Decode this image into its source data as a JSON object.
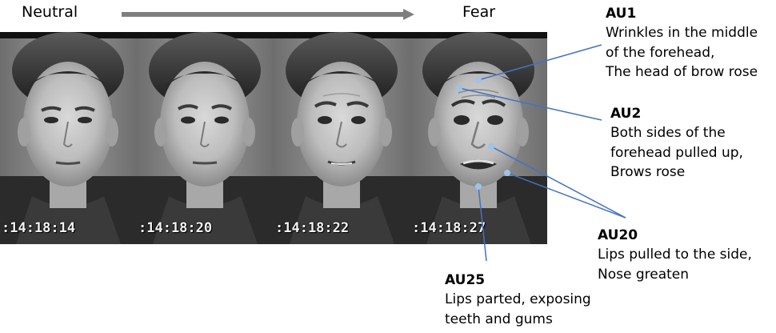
{
  "sequence": {
    "start_label": "Neutral",
    "end_label": "Fear"
  },
  "frames": [
    {
      "timestamp": ":14:18:14"
    },
    {
      "timestamp": ":14:18:20"
    },
    {
      "timestamp": ":14:18:22"
    },
    {
      "timestamp": ":14:18:27"
    }
  ],
  "action_units": {
    "au1": {
      "title": "AU1",
      "lines": [
        "Wrinkles in the middle",
        "of the forehead,",
        "The head of brow rose"
      ]
    },
    "au2": {
      "title": "AU2",
      "lines": [
        "Both sides of the",
        "forehead pulled up,",
        "Brows rose"
      ]
    },
    "au20": {
      "title": "AU20",
      "lines": [
        "Lips pulled to the side,",
        "Nose greaten"
      ]
    },
    "au25": {
      "title": "AU25",
      "lines": [
        "Lips parted, exposing",
        "teeth and gums"
      ]
    }
  },
  "colors": {
    "arrow": "#7f7f7f",
    "leader_lines": "#4472c4",
    "marker_dots": "#9dc3e6"
  }
}
